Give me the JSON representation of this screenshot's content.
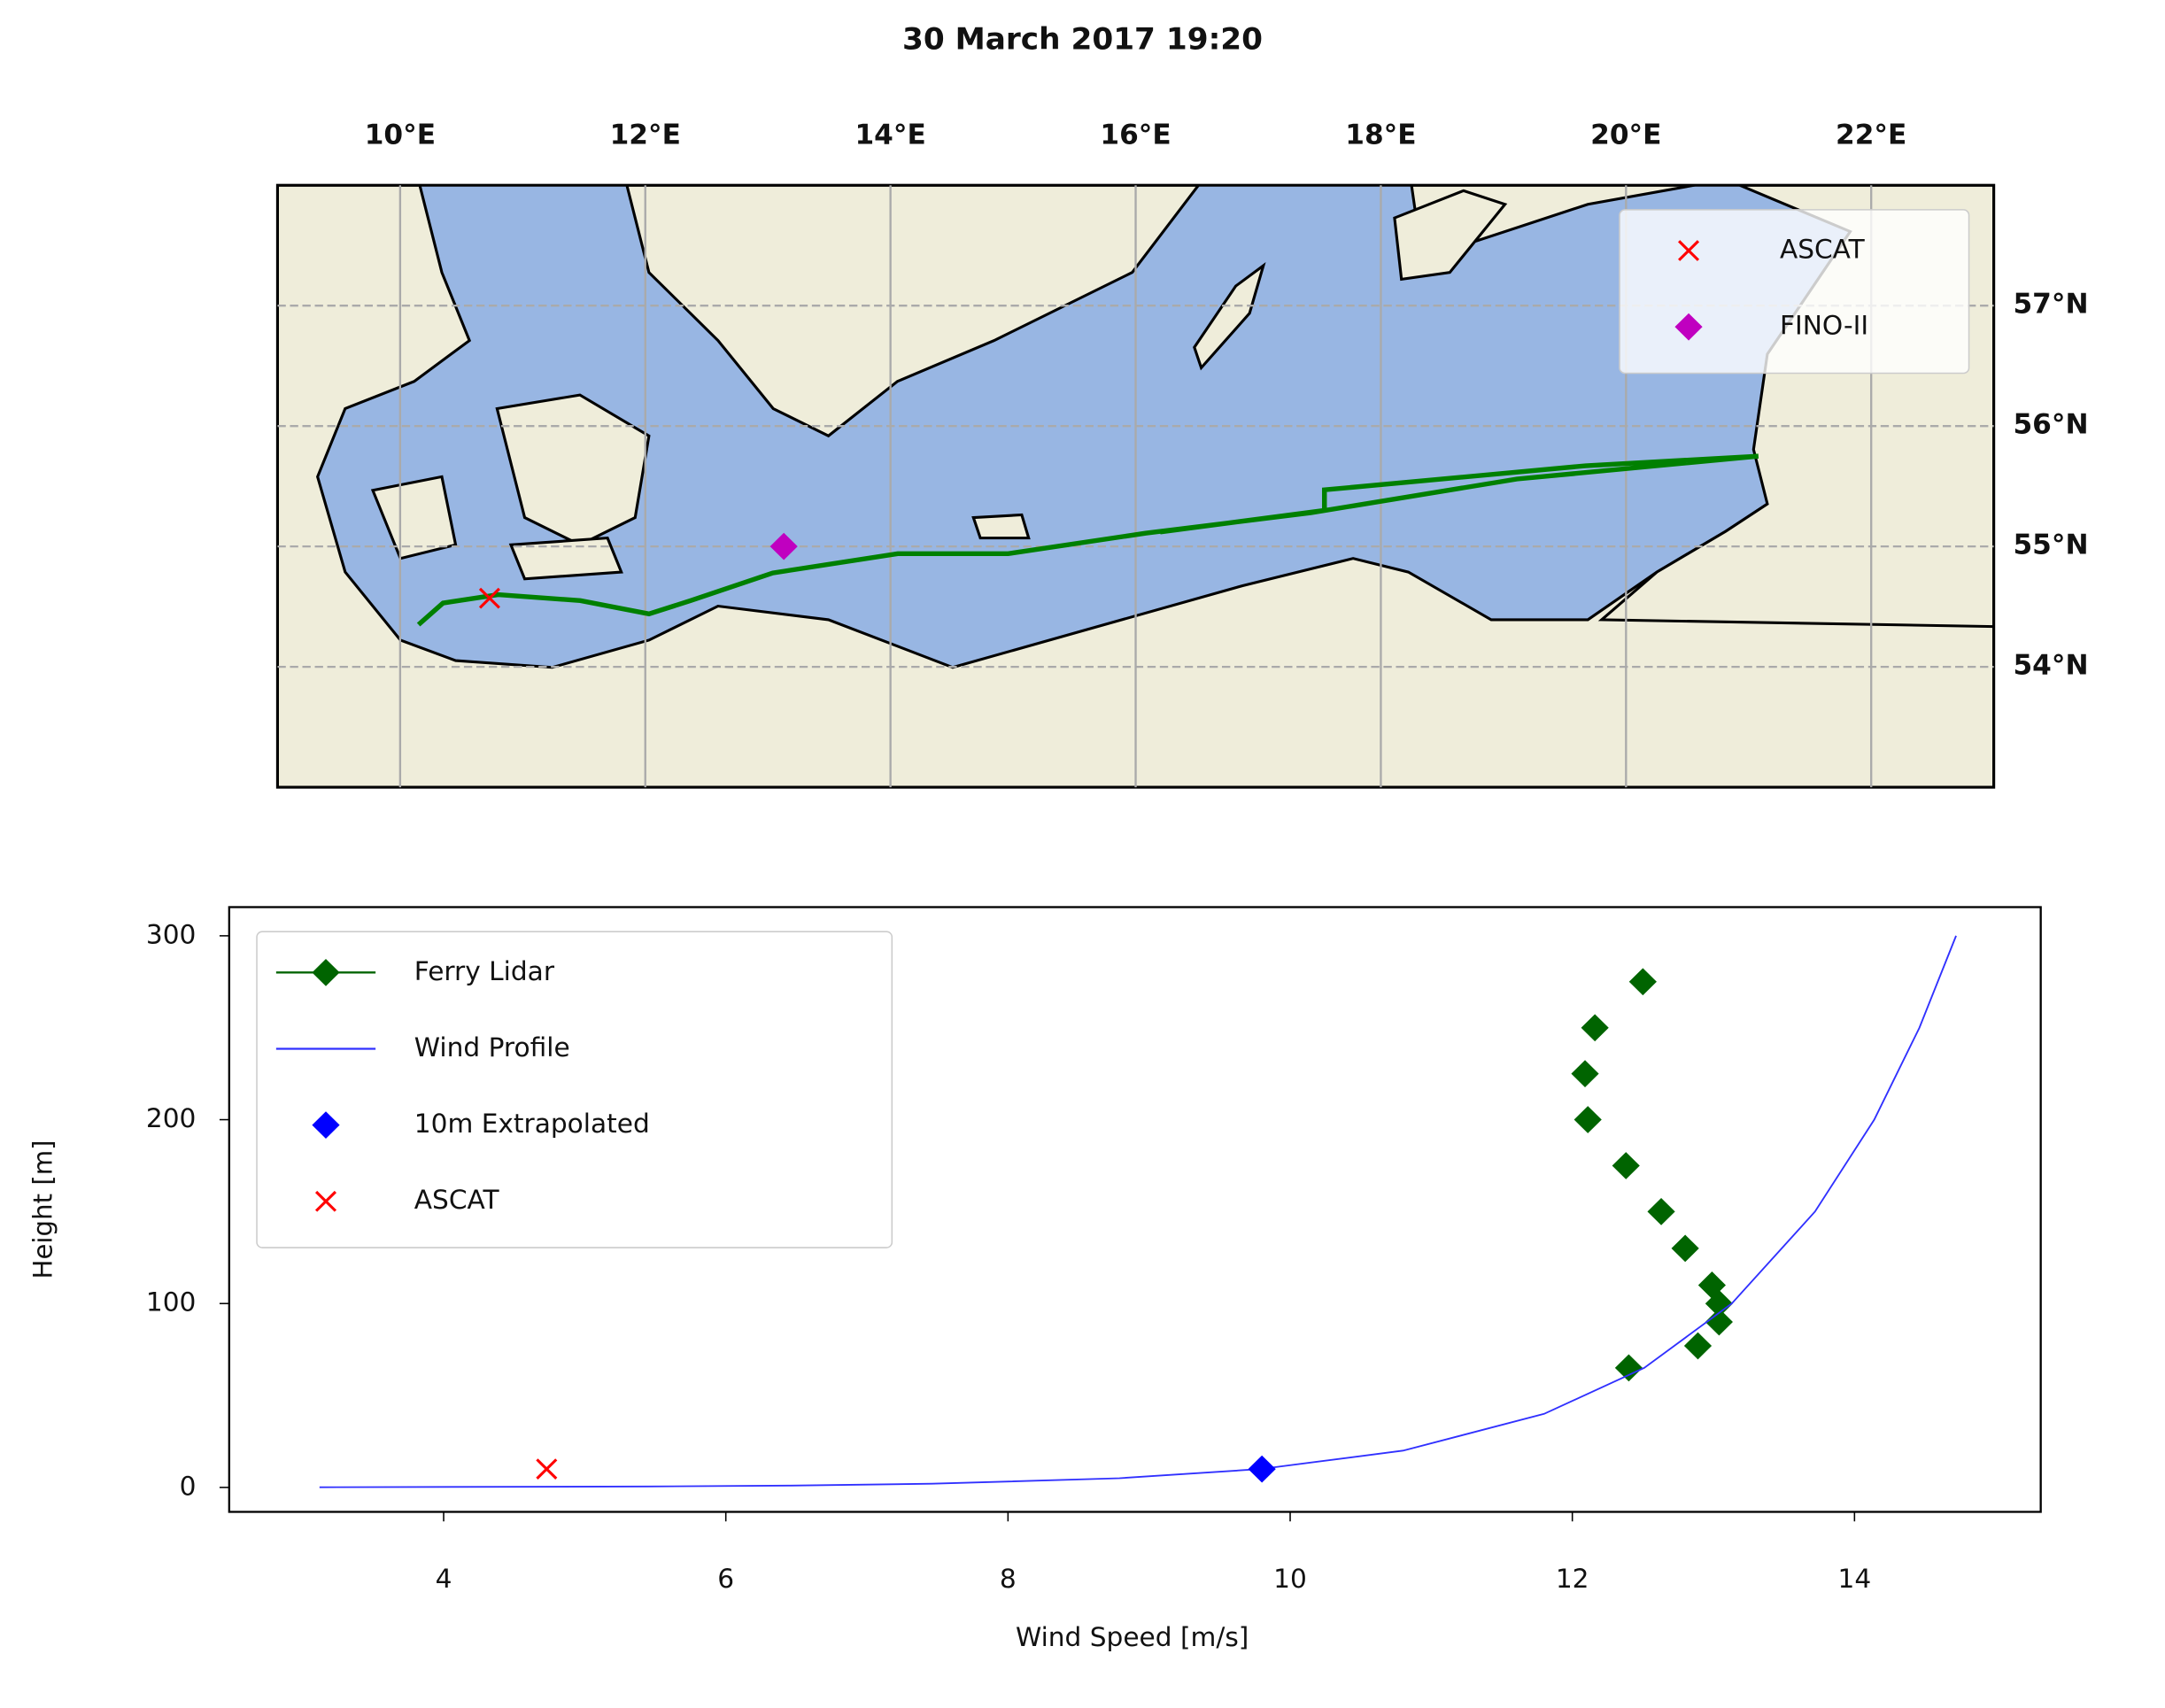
{
  "chart_data": [
    {
      "type": "map",
      "title": "30 March 2017 19:20",
      "xlim": [
        9,
        23
      ],
      "ylim": [
        53,
        58
      ],
      "xticks": [
        {
          "value": 10,
          "label": "10°E"
        },
        {
          "value": 12,
          "label": "12°E"
        },
        {
          "value": 14,
          "label": "14°E"
        },
        {
          "value": 16,
          "label": "16°E"
        },
        {
          "value": 18,
          "label": "18°E"
        },
        {
          "value": 20,
          "label": "20°E"
        },
        {
          "value": 22,
          "label": "22°E"
        }
      ],
      "yticks": [
        {
          "value": 54,
          "label": "54°N"
        },
        {
          "value": 55,
          "label": "55°N"
        },
        {
          "value": 56,
          "label": "56°N"
        },
        {
          "value": 57,
          "label": "57°N"
        }
      ],
      "grid": true,
      "legend": "upper right",
      "series": [
        {
          "color": "#008000",
          "marker": "none",
          "line": true,
          "x": [
            10.15,
            10.35,
            10.8,
            11.47,
            12.03,
            12.37,
            13.04,
            14.06,
            14.96,
            16.08,
            17.43,
            19.11,
            21.08,
            19.67,
            17.54,
            17.54,
            16.2
          ],
          "y": [
            54.35,
            54.53,
            54.6,
            54.55,
            54.44,
            54.55,
            54.78,
            54.94,
            54.94,
            55.11,
            55.28,
            55.56,
            55.75,
            55.67,
            55.47,
            55.3,
            55.12
          ]
        },
        {
          "name": "ASCAT",
          "color": "#ff0000",
          "marker": "x",
          "line": false,
          "x": [
            10.73
          ],
          "y": [
            54.57
          ]
        },
        {
          "name": "FINO-II",
          "color": "#c000c0",
          "marker": "diamond",
          "line": false,
          "x": [
            13.13
          ],
          "y": [
            55.0
          ]
        }
      ]
    },
    {
      "type": "line",
      "xlabel": "Wind Speed [m/s]",
      "ylabel": "Height [m]",
      "xlim": [
        2.48,
        15.32
      ],
      "ylim": [
        -13.3,
        315.6
      ],
      "xticks": [
        4,
        6,
        8,
        10,
        12,
        14
      ],
      "yticks": [
        0,
        100,
        200,
        300
      ],
      "legend": "upper left",
      "series": [
        {
          "name": "Ferry Lidar",
          "color": "#006400",
          "marker": "diamond",
          "line": false,
          "x": [
            12.4,
            12.89,
            13.04,
            13.04,
            12.99,
            12.8,
            12.63,
            12.38,
            12.11,
            12.09,
            12.16,
            12.5
          ],
          "y": [
            65,
            77,
            90,
            100,
            110,
            130,
            150,
            175,
            200,
            225,
            250,
            275
          ]
        },
        {
          "name": "Wind Profile",
          "color": "#3030ff",
          "marker": "none",
          "line": true,
          "x": [
            3.12,
            5.45,
            6.46,
            7.46,
            8.79,
            9.79,
            10.8,
            11.8,
            12.51,
            13.13,
            13.72,
            14.14,
            14.46,
            14.72
          ],
          "y": [
            0.1,
            0.5,
            1,
            2,
            5,
            10,
            20,
            40,
            65,
            100,
            150,
            200,
            250,
            300
          ]
        },
        {
          "name": "10m Extrapolated",
          "color": "#0000ff",
          "marker": "diamond",
          "line": false,
          "x": [
            9.8
          ],
          "y": [
            10
          ]
        },
        {
          "name": "ASCAT",
          "color": "#ff0000",
          "marker": "x",
          "line": false,
          "x": [
            4.73
          ],
          "y": [
            10
          ]
        }
      ]
    }
  ]
}
